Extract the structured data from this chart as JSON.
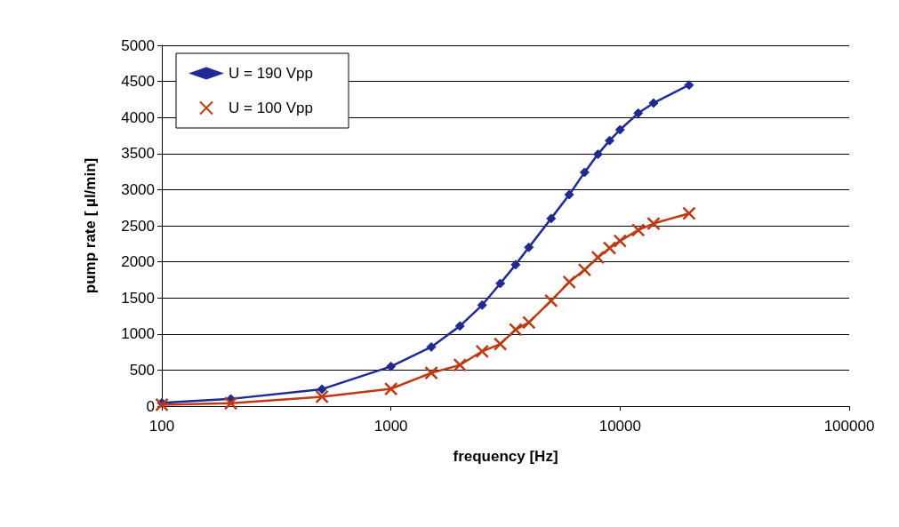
{
  "chart_data": {
    "type": "line",
    "xlabel": "frequency [Hz]",
    "ylabel": "pump rate [ µl/min]",
    "log": "x",
    "x": [
      100,
      200,
      500,
      1000,
      1500,
      2000,
      2500,
      3000,
      3500,
      4000,
      5000,
      6000,
      7000,
      8000,
      9000,
      10000,
      12000,
      14000,
      20000
    ],
    "series": [
      {
        "name": "U = 190 Vpp",
        "color": "#1f2a96",
        "marker": "diamond",
        "values": [
          45,
          100,
          235,
          550,
          820,
          1110,
          1400,
          1700,
          1960,
          2200,
          2600,
          2930,
          3240,
          3490,
          3680,
          3830,
          4060,
          4200,
          4450
        ]
      },
      {
        "name": "U = 100 Vpp",
        "color": "#c0390f",
        "marker": "cross",
        "values": [
          20,
          40,
          130,
          240,
          460,
          570,
          760,
          860,
          1060,
          1160,
          1460,
          1720,
          1890,
          2060,
          2190,
          2290,
          2440,
          2530,
          2670
        ]
      }
    ],
    "xlim": [
      100,
      100000
    ],
    "xticks": [
      100,
      1000,
      10000,
      100000
    ],
    "ylim": [
      0,
      5000
    ],
    "yticks": [
      0,
      500,
      1000,
      1500,
      2000,
      2500,
      3000,
      3500,
      4000,
      4500,
      5000
    ],
    "grid": "y",
    "legend": "top left"
  }
}
